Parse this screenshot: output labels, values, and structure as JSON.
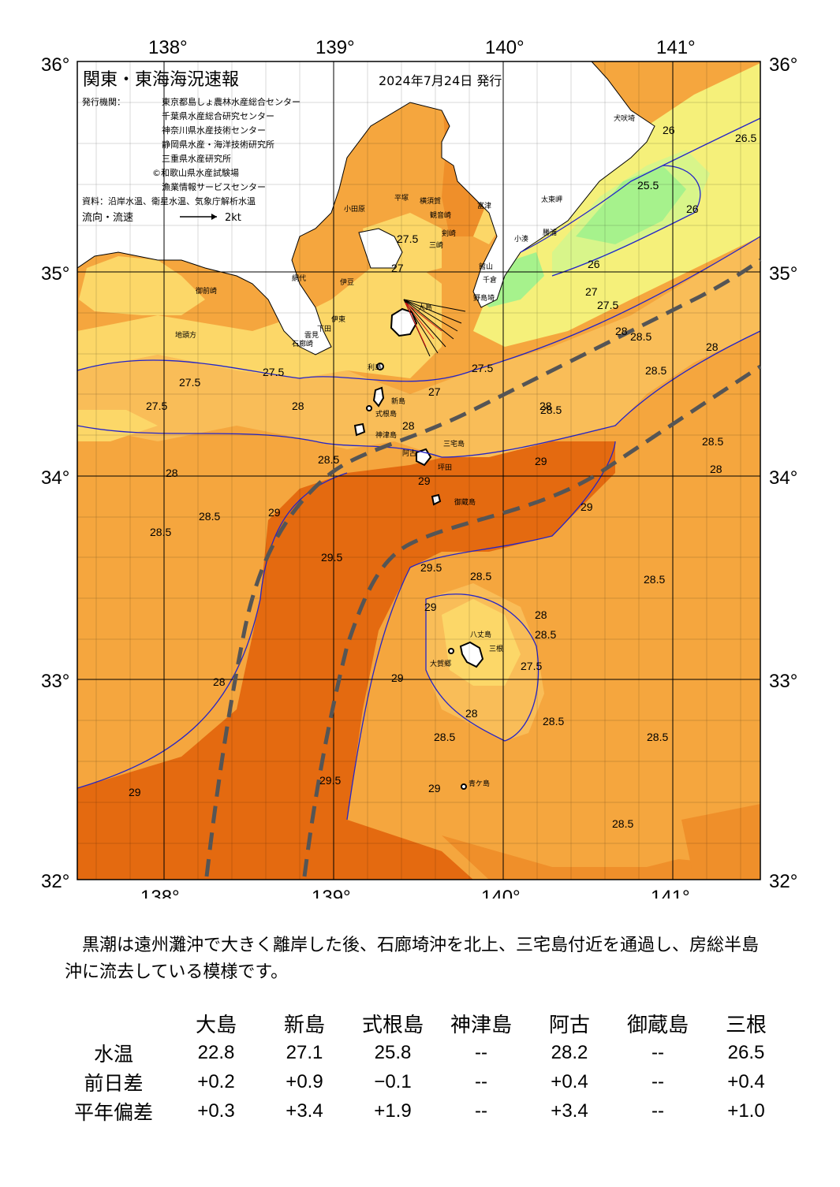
{
  "header": {
    "title": "関東・東海海況速報",
    "date": "2024年7月24日 発行",
    "issuer_label": "発行機関：",
    "issuers": [
      "東京都島しょ農林水産総合センター",
      "千葉県水産総合研究センター",
      "神奈川県水産技術センター",
      "静岡県水産・海洋技術研究所",
      "三重県水産研究所",
      "©和歌山県水産試験場",
      "漁業情報サービスセンター"
    ],
    "sources": "資料：沿岸水温、衛星水温、気象庁解析水温",
    "legend_label": "流向・流速",
    "legend_scale": "2kt"
  },
  "axes": {
    "lon_labels": [
      "138°",
      "139°",
      "140°",
      "141°"
    ],
    "lat_labels": [
      "36°",
      "35°",
      "34°",
      "33°",
      "32°"
    ]
  },
  "isotherm_labels": [
    "25.5",
    "26",
    "26.5",
    "27",
    "27.5",
    "28",
    "28.5",
    "29",
    "29.5"
  ],
  "places": [
    "犬吠埼",
    "太東岬",
    "勝浦",
    "小湊",
    "千倉",
    "館山",
    "野島埼",
    "富津",
    "横須賀",
    "観音崎",
    "剣崎",
    "三崎",
    "平塚",
    "小田原",
    "伊豆",
    "網代",
    "伊東",
    "下田",
    "石廊崎",
    "雲見",
    "御前崎",
    "地頭方",
    "大島",
    "利島",
    "新島",
    "式根島",
    "神津島",
    "阿古",
    "三宅島",
    "坪田",
    "御蔵島",
    "八丈島",
    "三根",
    "大賀郷",
    "青ケ島"
  ],
  "colors": {
    "land": "#ffffff",
    "t_25_5": "#a6f28c",
    "t_26": "#d8f58a",
    "t_27": "#f5f07a",
    "t_27_5": "#fcd768",
    "t_28": "#f9bd58",
    "t_28_5": "#f5a63e",
    "t_29": "#ef8f2a",
    "t_29_5": "#e46a10",
    "kuroshio_axis": "#555555",
    "isotherm_line": "#2424c8"
  },
  "summary": "黒潮は遠州灘沖で大きく離岸した後、石廊埼沖を北上、三宅島付近を通過し、房総半島沖に流去している模様です。",
  "table": {
    "sites": [
      "大島",
      "新島",
      "式根島",
      "神津島",
      "阿古",
      "御蔵島",
      "三根"
    ],
    "rows": [
      {
        "label": "水温",
        "values": [
          "22.8",
          "27.1",
          "25.8",
          "--",
          "28.2",
          "--",
          "26.5"
        ]
      },
      {
        "label": "前日差",
        "values": [
          "+0.2",
          "+0.9",
          "−0.1",
          "--",
          "+0.4",
          "--",
          "+0.4"
        ]
      },
      {
        "label": "平年偏差",
        "values": [
          "+0.3",
          "+3.4",
          "+1.9",
          "--",
          "+3.4",
          "--",
          "+1.0"
        ]
      }
    ]
  }
}
